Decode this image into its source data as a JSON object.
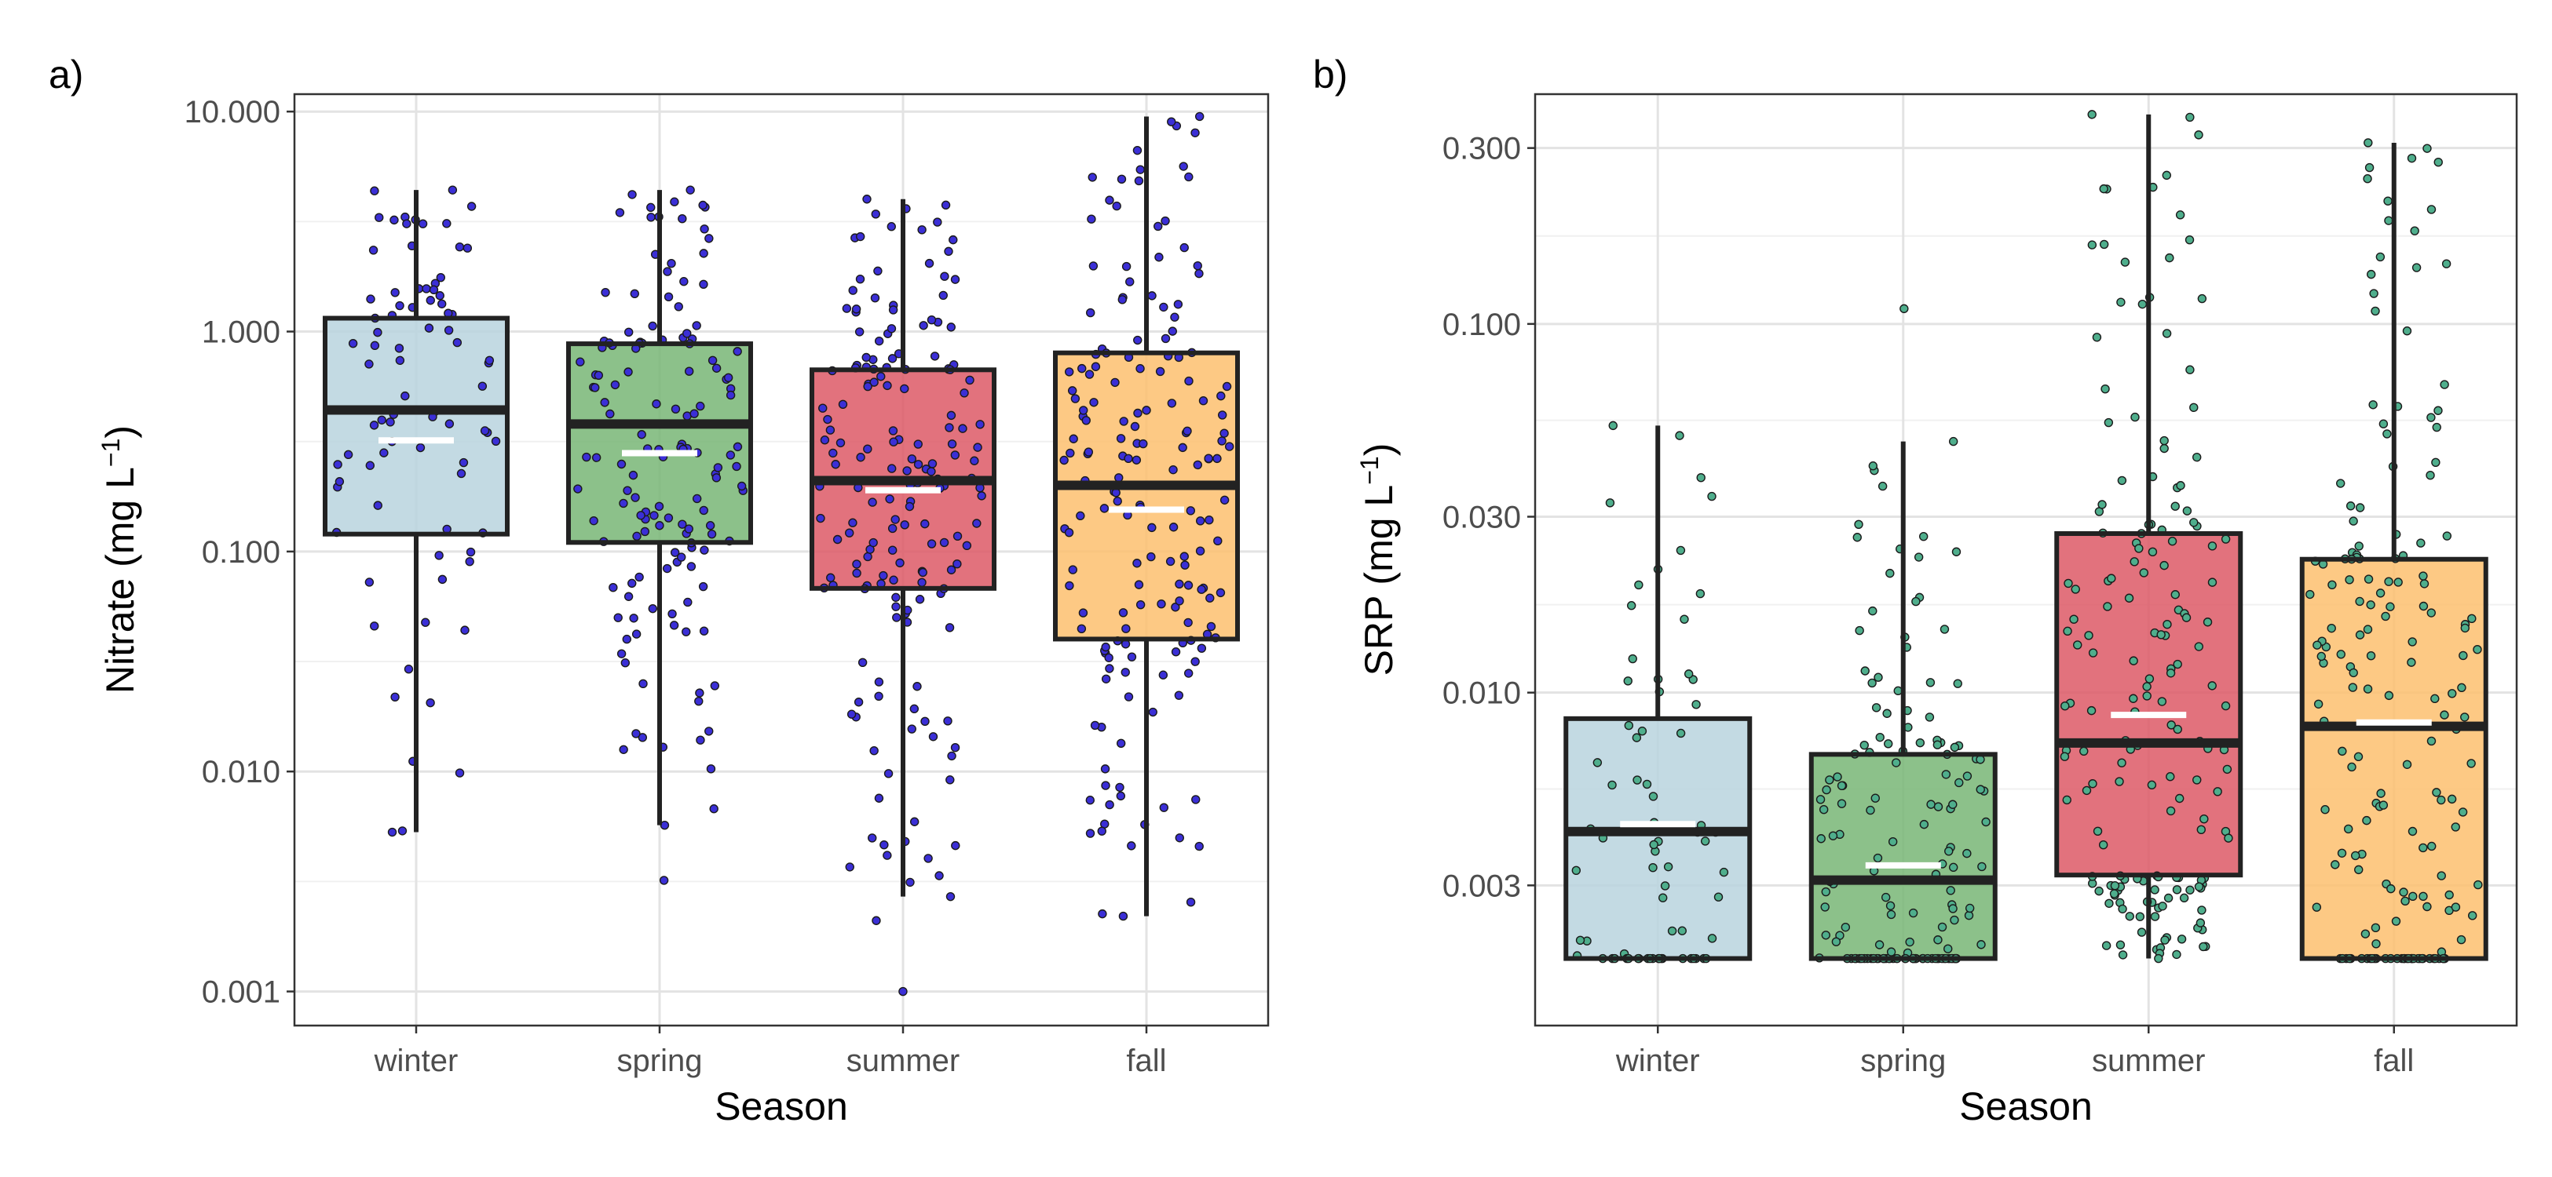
{
  "chart_data": [
    {
      "type": "boxplot",
      "panel_label": "a)",
      "xlabel": "Season",
      "ylabel": "Nitrate",
      "ylabel_unit": "(mg L",
      "ylabel_sup": "−1",
      "ylabel_close": ")",
      "yscale": "log10",
      "ylim": [
        0.0007,
        12
      ],
      "yticks": [
        0.001,
        0.01,
        0.1,
        1,
        10
      ],
      "ytick_labels": [
        "0.001",
        "0.010",
        "0.100",
        "1.000",
        "10.000"
      ],
      "categories": [
        "winter",
        "spring",
        "summer",
        "fall"
      ],
      "point_color": "#3b2fd6",
      "boxes": [
        {
          "name": "winter",
          "color": "#b9d3de",
          "min": 0.0053,
          "q1": 0.12,
          "median": 0.44,
          "q3": 1.15,
          "max": 4.4,
          "mean": 0.32,
          "n": 80
        },
        {
          "name": "spring",
          "color": "#78b676",
          "min": 0.0057,
          "q1": 0.11,
          "median": 0.38,
          "q3": 0.88,
          "max": 4.4,
          "mean": 0.28,
          "n": 140,
          "outliers": [
            0.0032
          ]
        },
        {
          "name": "summer",
          "color": "#dd5966",
          "min": 0.0027,
          "q1": 0.068,
          "median": 0.21,
          "q3": 0.67,
          "max": 4.0,
          "mean": 0.19,
          "n": 170,
          "outliers": [
            0.0021,
            0.001
          ]
        },
        {
          "name": "fall",
          "color": "#fdbf6f",
          "min": 0.0022,
          "q1": 0.04,
          "median": 0.2,
          "q3": 0.8,
          "max": 9.5,
          "mean": 0.155,
          "n": 170
        }
      ]
    },
    {
      "type": "boxplot",
      "panel_label": "b)",
      "xlabel": "Season",
      "ylabel": "SRP",
      "ylabel_unit": "(mg L",
      "ylabel_sup": "−1",
      "ylabel_close": ")",
      "yscale": "log10",
      "ylim": [
        0.00125,
        0.42
      ],
      "yticks": [
        0.003,
        0.01,
        0.03,
        0.1,
        0.3
      ],
      "ytick_labels": [
        "0.003",
        "0.010",
        "0.030",
        "0.100",
        "0.300"
      ],
      "categories": [
        "winter",
        "spring",
        "summer",
        "fall"
      ],
      "point_color": "#4fae8c",
      "boxes": [
        {
          "name": "winter",
          "color": "#b9d3de",
          "min": 0.0019,
          "q1": 0.0019,
          "median": 0.0042,
          "q3": 0.0085,
          "max": 0.053,
          "mean": 0.0044,
          "n": 70
        },
        {
          "name": "spring",
          "color": "#78b676",
          "min": 0.0019,
          "q1": 0.0019,
          "median": 0.0031,
          "q3": 0.0068,
          "max": 0.048,
          "mean": 0.0034,
          "n": 150,
          "outliers": [
            0.11
          ]
        },
        {
          "name": "summer",
          "color": "#dd5966",
          "min": 0.0019,
          "q1": 0.0032,
          "median": 0.0073,
          "q3": 0.027,
          "max": 0.37,
          "mean": 0.0087,
          "n": 170
        },
        {
          "name": "fall",
          "color": "#fdbf6f",
          "min": 0.0019,
          "q1": 0.0019,
          "median": 0.0081,
          "q3": 0.023,
          "max": 0.31,
          "mean": 0.0083,
          "n": 170
        }
      ]
    }
  ]
}
